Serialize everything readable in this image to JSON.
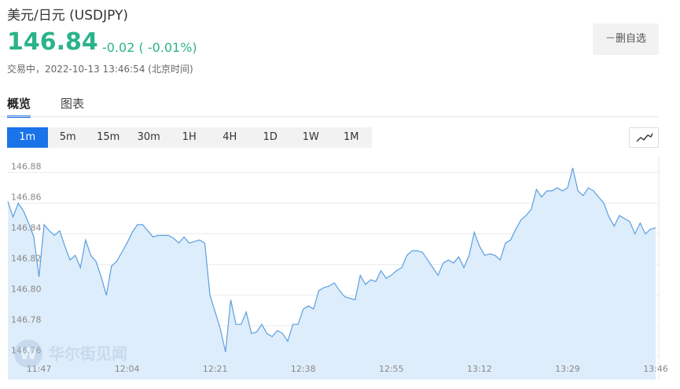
{
  "header": {
    "title": "美元/日元 (USDJPY)",
    "price": "146.84",
    "change": "-0.02 ( -0.01%)",
    "status": "交易中，2022-10-13 13:46:54 (北京时间)",
    "button": "－删自选"
  },
  "tabs": [
    "概览",
    "图表"
  ],
  "intervals": [
    "1m",
    "5m",
    "15m",
    "30m",
    "1H",
    "4H",
    "1D",
    "1W",
    "1M"
  ],
  "watermark": "华尔街见闻",
  "chart_data": {
    "type": "line",
    "color": "#5b9fe0",
    "fill": "#deedfb",
    "grid": true,
    "x": [
      41,
      42,
      43,
      44,
      45,
      46,
      47,
      48,
      49,
      50,
      51,
      52,
      53,
      54,
      55,
      56,
      57,
      58,
      59,
      60,
      61,
      62,
      63,
      64,
      65,
      66,
      67,
      68,
      69,
      70,
      71,
      72,
      73,
      74,
      75,
      76,
      77,
      78,
      79,
      80,
      81,
      82,
      83,
      84,
      85,
      86,
      87,
      88,
      89,
      90,
      91,
      92,
      93,
      94,
      95,
      96,
      97,
      98,
      99,
      100,
      101,
      102,
      103,
      104,
      105,
      106,
      107,
      108,
      109,
      110,
      111,
      112,
      113,
      114,
      115,
      116,
      117,
      118,
      119,
      120,
      121,
      122,
      123,
      124,
      125,
      126,
      127,
      128,
      129,
      130,
      131,
      132,
      133,
      134,
      135,
      136,
      137,
      138,
      139,
      140,
      141,
      142,
      143,
      144,
      145,
      146,
      147,
      148,
      149,
      150,
      151,
      152,
      153,
      154,
      155,
      156,
      157,
      158,
      159,
      160,
      161,
      162,
      163,
      164,
      165,
      166
    ],
    "values": [
      146.861,
      146.851,
      146.86,
      146.855,
      146.847,
      146.838,
      146.812,
      146.846,
      146.842,
      146.839,
      146.842,
      146.832,
      146.823,
      146.826,
      146.818,
      146.836,
      146.826,
      146.822,
      146.812,
      146.8,
      146.819,
      146.822,
      146.828,
      146.834,
      146.841,
      146.846,
      146.846,
      146.842,
      146.838,
      146.839,
      146.839,
      146.839,
      146.837,
      146.834,
      146.838,
      146.834,
      146.835,
      146.836,
      146.834,
      146.8,
      146.789,
      146.778,
      146.763,
      146.797,
      146.781,
      146.781,
      146.789,
      146.775,
      146.776,
      146.781,
      146.775,
      146.773,
      146.777,
      146.775,
      146.77,
      146.781,
      146.781,
      146.791,
      146.793,
      146.791,
      146.803,
      146.805,
      146.806,
      146.808,
      146.803,
      146.799,
      146.798,
      146.797,
      146.813,
      146.807,
      146.81,
      146.809,
      146.816,
      146.811,
      146.813,
      146.816,
      146.818,
      146.826,
      146.829,
      146.829,
      146.828,
      146.823,
      146.818,
      146.813,
      146.821,
      146.823,
      146.821,
      146.825,
      146.818,
      146.826,
      146.841,
      146.832,
      146.826,
      146.827,
      146.826,
      146.823,
      146.834,
      146.836,
      146.843,
      146.849,
      146.852,
      146.856,
      146.869,
      146.864,
      146.868,
      146.868,
      146.87,
      146.868,
      146.87,
      146.883,
      146.868,
      146.865,
      146.87,
      146.868,
      146.864,
      146.86,
      146.851,
      146.845,
      146.852,
      146.85,
      146.848,
      146.84,
      146.847,
      146.84,
      146.843,
      146.844
    ],
    "xlim": [
      41,
      166.6
    ],
    "xticks": [
      {
        "value": 47,
        "label": "11:47"
      },
      {
        "value": 64,
        "label": "12:04"
      },
      {
        "value": 81,
        "label": "12:21"
      },
      {
        "value": 98,
        "label": "12:38"
      },
      {
        "value": 115,
        "label": "12:55"
      },
      {
        "value": 132,
        "label": "13:12"
      },
      {
        "value": 149,
        "label": "13:29"
      },
      {
        "value": 166,
        "label": "13:46"
      }
    ],
    "ylim": [
      146.745,
      146.89
    ],
    "yticks": [
      146.76,
      146.78,
      {
        "value": 146.8,
        "label": "146.80"
      },
      146.82,
      146.84,
      146.86,
      146.88
    ]
  }
}
